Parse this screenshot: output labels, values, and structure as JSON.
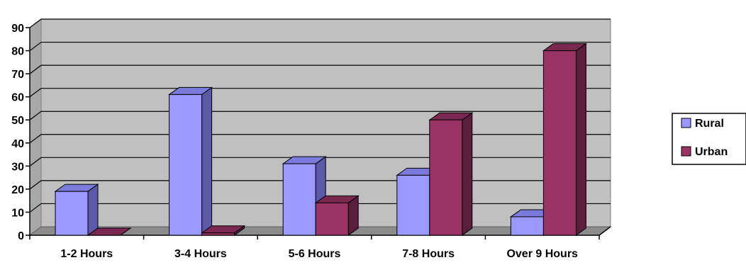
{
  "chart_data": {
    "type": "bar",
    "style": "3d-clustered-column",
    "categories": [
      "1-2 Hours",
      "3-4 Hours",
      "5-6 Hours",
      "7-8 Hours",
      "Over 9 Hours"
    ],
    "series": [
      {
        "name": "Rural",
        "values": [
          19,
          61,
          31,
          26,
          8
        ],
        "color": "#9999ff",
        "side_color": "#5a5aa8",
        "top_color": "#7b7bdc"
      },
      {
        "name": "Urban",
        "values": [
          0,
          1,
          14,
          50,
          80
        ],
        "color": "#993366",
        "side_color": "#5a1e3c",
        "top_color": "#7a2850"
      }
    ],
    "ylim": [
      0,
      90
    ],
    "yticks": [
      0,
      10,
      20,
      30,
      40,
      50,
      60,
      70,
      80,
      90
    ],
    "grid": true,
    "wall_color": "#c0c0c0",
    "legend": "right"
  }
}
